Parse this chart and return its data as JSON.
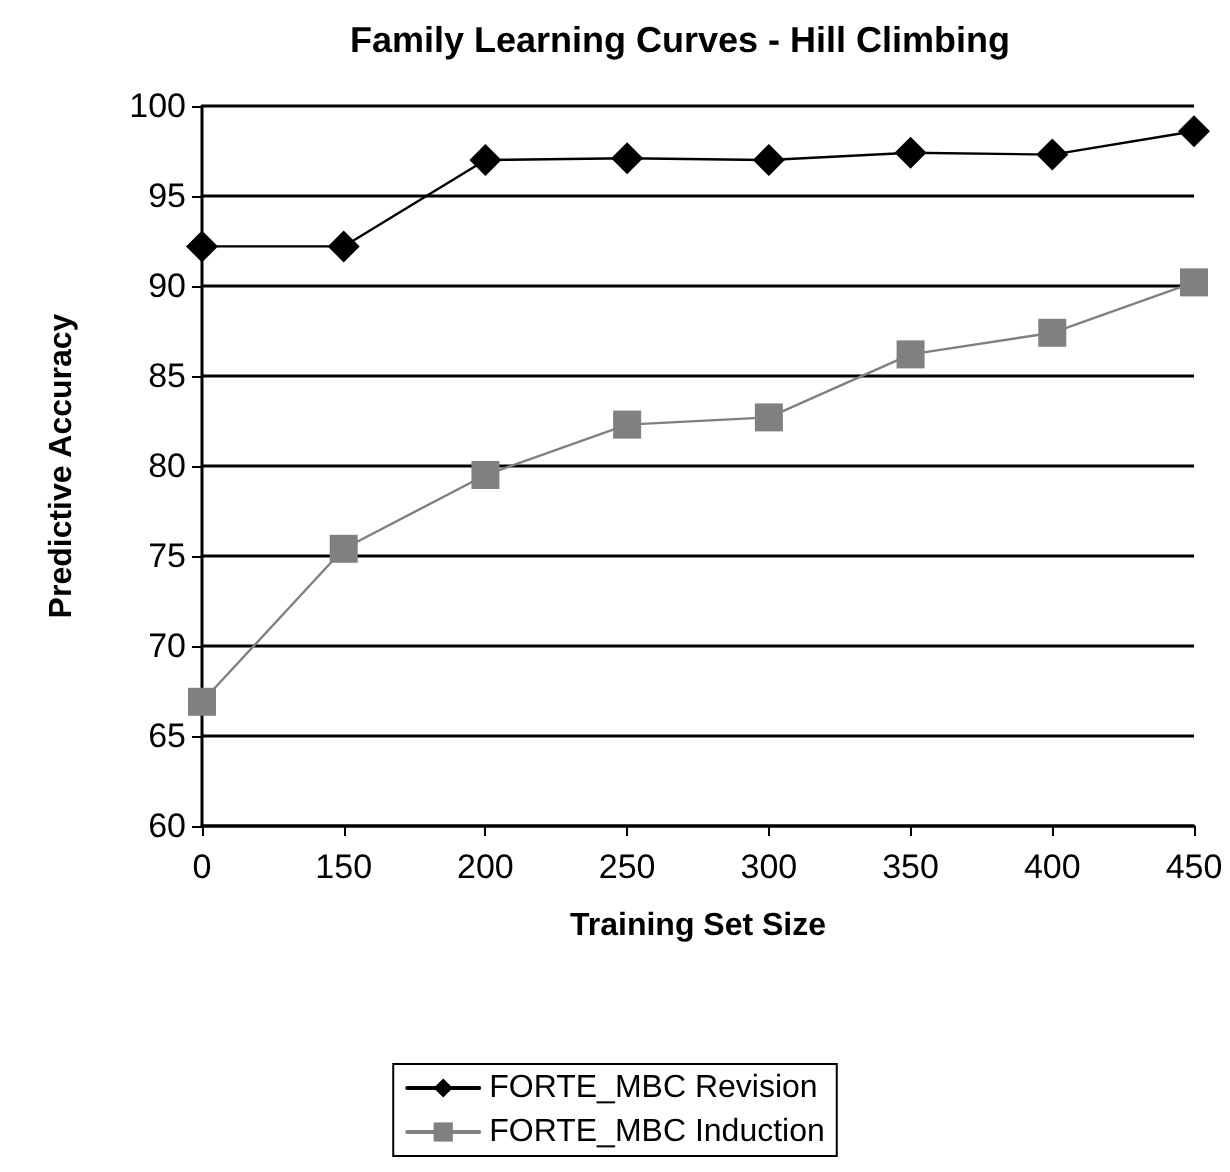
{
  "chart_data": {
    "type": "line",
    "title": "Family Learning Curves - Hill Climbing",
    "xlabel": "Training Set Size",
    "ylabel": "Predictive Accuracy",
    "categories": [
      "0",
      "150",
      "200",
      "250",
      "300",
      "350",
      "400",
      "450"
    ],
    "series": [
      {
        "name": "FORTE_MBC Revision",
        "color": "#000000",
        "marker": "diamond",
        "values": [
          92.2,
          92.2,
          97.0,
          97.1,
          97.0,
          97.4,
          97.3,
          98.6
        ]
      },
      {
        "name": "FORTE_MBC Induction",
        "color": "#808080",
        "marker": "square",
        "values": [
          66.9,
          75.4,
          79.5,
          82.3,
          82.7,
          86.2,
          87.4,
          90.2
        ]
      }
    ],
    "ylim": [
      60,
      100
    ],
    "yticks": [
      60,
      65,
      70,
      75,
      80,
      85,
      90,
      95,
      100
    ],
    "grid": "y",
    "legend": "bottom",
    "line_style": "solid"
  }
}
